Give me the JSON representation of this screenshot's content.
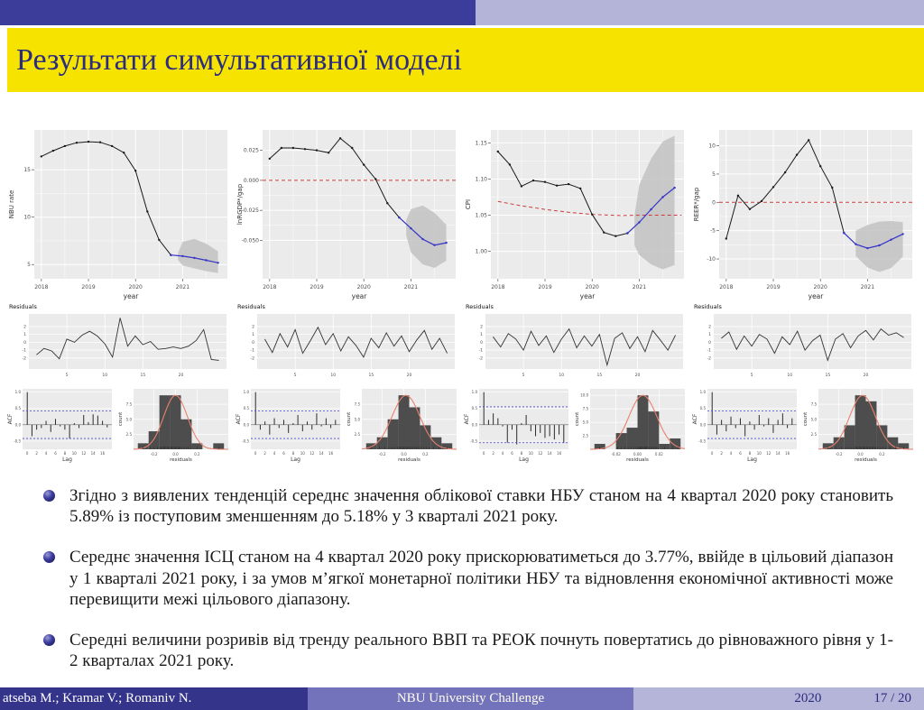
{
  "header": {
    "title": "Результати симультативної моделі"
  },
  "bullets": [
    "Згідно з виявлених тенденцій середнє значення облікової ставки НБУ станом на 4 квартал 2020 року становить 5.89% із поступовим зменшенням до 5.18% у 3 кварталі 2021 року.",
    "Середнє значення ІСЦ станом на 4 квартал 2020 року прискорюватиметься до 3.77%, ввійде в цільовий діапазон у 1 кварталі 2021 року, і за умов м’ягкої монетарної політики НБУ та відновлення економічної активності може перевищити межі цільового діапазону.",
    "Середні величини розривів від тренду реального ВВП та РЕОК почнуть повертатись до рівноважного рівня у 1-2 кварталах 2021 року."
  ],
  "footer": {
    "authors": "atseba M.; Kramar V.; Romaniv N.",
    "event": "NBU University Challenge",
    "year": "2020",
    "page": "17 / 20"
  },
  "colors": {
    "band_dark_blue": "#3c3c9b",
    "band_light_blue": "#b4b4d8",
    "title_yellow": "#f6e300",
    "title_text": "#2b2b80",
    "actual_line": "#1a1a1a",
    "forecast_line": "#3535c8",
    "target_line_red": "#cc3b3b",
    "fan_gray": "#c2c2c2",
    "panel_gray": "#ebebeb",
    "hist_bar": "#4d4d4d",
    "normal_curve": "#e8826e",
    "acf_conf_blue": "#4747d1"
  },
  "chart_data": {
    "type": "line",
    "xlabel": "year",
    "xticks": [
      2018,
      2019,
      2020,
      2021
    ],
    "panels": [
      {
        "ylabel": "NBU rate",
        "ydp": 0,
        "xlim": [
          2017.85,
          2021.95
        ],
        "ylim": [
          3.5,
          19.2
        ],
        "yticks": [
          15,
          10,
          5
        ],
        "actual": {
          "x_start": 2018.0,
          "step": 0.25,
          "values": [
            16.4,
            17.0,
            17.5,
            17.85,
            17.95,
            17.9,
            17.5,
            16.8,
            14.9,
            10.6,
            7.6,
            6.0
          ]
        },
        "forecast": {
          "x_start": 2020.75,
          "step": 0.25,
          "values": [
            6.0,
            5.89,
            5.7,
            5.45,
            5.18
          ]
        },
        "redline": null,
        "fan": {
          "x": [
            2020.9,
            2021.0,
            2021.25,
            2021.5,
            2021.75
          ],
          "lo": [
            5.5,
            4.9,
            4.6,
            4.3,
            4.1
          ],
          "hi": [
            6.2,
            7.4,
            7.7,
            7.2,
            6.4
          ]
        }
      },
      {
        "ylabel": "lnRGDP*/gap",
        "ydp": 3,
        "xlim": [
          2017.85,
          2021.95
        ],
        "ylim": [
          -0.082,
          0.042
        ],
        "yticks": [
          0.025,
          0.0,
          -0.025,
          -0.05
        ],
        "actual": {
          "x_start": 2018.0,
          "step": 0.25,
          "values": [
            0.018,
            0.027,
            0.027,
            0.026,
            0.025,
            0.023,
            0.035,
            0.027,
            0.013,
            0.001,
            -0.019,
            -0.031
          ]
        },
        "forecast": {
          "x_start": 2020.75,
          "step": 0.25,
          "values": [
            -0.031,
            -0.04,
            -0.049,
            -0.054,
            -0.052
          ]
        },
        "redline": {
          "const": 0
        },
        "fan": {
          "x": [
            2020.9,
            2021.0,
            2021.25,
            2021.5,
            2021.75
          ],
          "lo": [
            -0.046,
            -0.06,
            -0.07,
            -0.073,
            -0.067
          ],
          "hi": [
            -0.033,
            -0.024,
            -0.021,
            -0.027,
            -0.037
          ]
        }
      },
      {
        "ylabel": "CPI",
        "ydp": 2,
        "xlim": [
          2017.85,
          2021.95
        ],
        "ylim": [
          0.962,
          1.168
        ],
        "yticks": [
          1.15,
          1.1,
          1.05,
          1.0
        ],
        "actual": {
          "x_start": 2018.0,
          "step": 0.25,
          "values": [
            1.138,
            1.12,
            1.09,
            1.098,
            1.096,
            1.091,
            1.093,
            1.087,
            1.051,
            1.026,
            1.021,
            1.025
          ]
        },
        "forecast": {
          "x_start": 2020.75,
          "step": 0.25,
          "values": [
            1.025,
            1.04,
            1.058,
            1.075,
            1.088
          ]
        },
        "redline": {
          "points": [
            [
              2018.0,
              1.069
            ],
            [
              2018.5,
              1.063
            ],
            [
              2019.0,
              1.058
            ],
            [
              2019.5,
              1.054
            ],
            [
              2020.0,
              1.051
            ],
            [
              2020.6,
              1.0495
            ],
            [
              2021.0,
              1.05
            ],
            [
              2021.9,
              1.05
            ]
          ]
        },
        "fan": {
          "x": [
            2020.9,
            2021.0,
            2021.25,
            2021.5,
            2021.75
          ],
          "lo": [
            1.008,
            0.995,
            0.982,
            0.975,
            0.981
          ],
          "hi": [
            1.05,
            1.092,
            1.128,
            1.152,
            1.16
          ]
        }
      },
      {
        "ylabel": "REER*/gap",
        "ydp": 0,
        "xlim": [
          2017.85,
          2021.95
        ],
        "ylim": [
          -13.5,
          12.8
        ],
        "yticks": [
          10,
          5,
          0,
          -5,
          -10
        ],
        "actual": {
          "x_start": 2018.0,
          "step": 0.25,
          "values": [
            -6.4,
            1.2,
            -1.2,
            0.2,
            2.7,
            5.3,
            8.4,
            11.0,
            6.4,
            2.6,
            -5.4
          ]
        },
        "forecast": {
          "x_start": 2020.5,
          "step": 0.25,
          "values": [
            -5.4,
            -7.4,
            -8.1,
            -7.6,
            -6.6,
            -5.6
          ]
        },
        "redline": {
          "const": 0
        },
        "fan": {
          "x": [
            2020.75,
            2021.0,
            2021.25,
            2021.5,
            2021.75
          ],
          "lo": [
            -9.5,
            -11.5,
            -12.3,
            -11.6,
            -9.6
          ],
          "hi": [
            -5.0,
            -4.0,
            -3.4,
            -3.3,
            -3.5
          ]
        }
      }
    ],
    "residuals": {
      "title": "Residuals",
      "yticks": [
        -2,
        -1,
        0,
        1,
        2
      ],
      "xticks": [
        5,
        10,
        15,
        20
      ],
      "series": [
        [
          -1.6,
          -0.8,
          -1.1,
          -2.1,
          0.4,
          0.0,
          0.9,
          1.4,
          0.8,
          -0.2,
          -1.9,
          3.1,
          -0.5,
          0.8,
          -0.3,
          0.1,
          -0.9,
          -0.8,
          -0.6,
          -0.8,
          -0.5,
          0.2,
          1.6,
          -2.2,
          -2.3
        ],
        [
          0.4,
          -1.3,
          1.1,
          -0.6,
          1.6,
          -1.4,
          0.2,
          1.9,
          -0.3,
          1.1,
          -1.1,
          0.7,
          -0.4,
          -1.9,
          0.5,
          -0.7,
          1.2,
          -0.5,
          0.8,
          -1.2,
          0.3,
          1.5,
          -0.9,
          0.5,
          -1.4
        ],
        [
          0.7,
          -0.6,
          1.1,
          0.4,
          -1.0,
          1.4,
          -0.4,
          0.8,
          -1.3,
          0.4,
          1.7,
          -0.7,
          0.8,
          -0.5,
          1.0,
          -2.9,
          0.5,
          1.2,
          -0.8,
          0.7,
          -1.2,
          1.5,
          0.3,
          -1.0,
          0.9
        ],
        [
          0.5,
          1.3,
          -0.9,
          0.8,
          -0.5,
          1.0,
          0.4,
          -1.4,
          0.7,
          -0.3,
          1.4,
          -1.0,
          0.2,
          0.9,
          -2.3,
          0.4,
          1.1,
          -0.7,
          0.8,
          1.5,
          0.3,
          1.7,
          0.9,
          1.2,
          0.6
        ]
      ]
    },
    "acf": {
      "xlabel": "Lag",
      "ylabel": "ACF",
      "yticks": [
        1.0,
        0.5,
        0.0,
        -0.5
      ],
      "panels": [
        {
          "conf": 0.42,
          "values": [
            1,
            -0.35,
            -0.15,
            -0.1,
            0.12,
            -0.22,
            0.18,
            -0.05,
            -0.15,
            -0.42,
            0.05,
            -0.1,
            0.3,
            0.08,
            0.32,
            0.28,
            0.12,
            -0.08
          ]
        },
        {
          "conf": 0.42,
          "values": [
            1,
            -0.15,
            0.1,
            -0.3,
            0.2,
            -0.1,
            0.15,
            -0.25,
            0.05,
            0.3,
            -0.2,
            0.1,
            -0.15,
            0.35,
            -0.05,
            0.2,
            -0.1,
            0.15
          ]
        },
        {
          "conf": 0.55,
          "values": [
            1,
            0.15,
            0.35,
            0.2,
            -0.05,
            -0.55,
            -0.15,
            -0.6,
            0.05,
            0.3,
            -0.2,
            -0.35,
            -0.25,
            -0.4,
            -0.35,
            -0.45,
            -0.3,
            -0.55
          ]
        },
        {
          "conf": 0.42,
          "values": [
            1,
            -0.3,
            0.15,
            -0.2,
            0.25,
            -0.1,
            0.2,
            -0.35,
            0.1,
            -0.15,
            0.3,
            -0.05,
            0.2,
            -0.25,
            0.15,
            0.35,
            -0.1,
            0.2
          ]
        }
      ]
    },
    "hist": {
      "xlabel": "residuals",
      "ylabel": "count",
      "panels": [
        {
          "start": -0.35,
          "step": 0.1,
          "counts": [
            1,
            3,
            9,
            9,
            5,
            1,
            0,
            1
          ],
          "mu": 0.0,
          "sd": 0.11,
          "xticks": [
            -0.2,
            0.0,
            0.2
          ],
          "xdp": 1,
          "yticks": [
            2.5,
            5.0,
            7.5
          ]
        },
        {
          "start": -0.35,
          "step": 0.1,
          "counts": [
            1,
            2,
            5,
            9,
            7,
            4,
            2,
            1
          ],
          "mu": 0.02,
          "sd": 0.13,
          "xticks": [
            -0.2,
            0.0,
            0.2
          ],
          "xdp": 1,
          "yticks": [
            2.5,
            5.0,
            7.5
          ]
        },
        {
          "start": -0.04,
          "step": 0.01,
          "counts": [
            1,
            0,
            3,
            4,
            10,
            7,
            1,
            2
          ],
          "mu": 0.005,
          "sd": 0.013,
          "xticks": [
            -0.02,
            0.0,
            0.02
          ],
          "xdp": 2,
          "yticks": [
            2.5,
            5.0,
            7.5,
            10.0
          ]
        },
        {
          "start": -0.35,
          "step": 0.1,
          "counts": [
            1,
            2,
            4,
            9,
            8,
            4,
            2,
            1
          ],
          "mu": 0.02,
          "sd": 0.12,
          "xticks": [
            -0.2,
            0.0,
            0.2
          ],
          "xdp": 1,
          "yticks": [
            2.5,
            5.0,
            7.5
          ]
        }
      ]
    }
  }
}
